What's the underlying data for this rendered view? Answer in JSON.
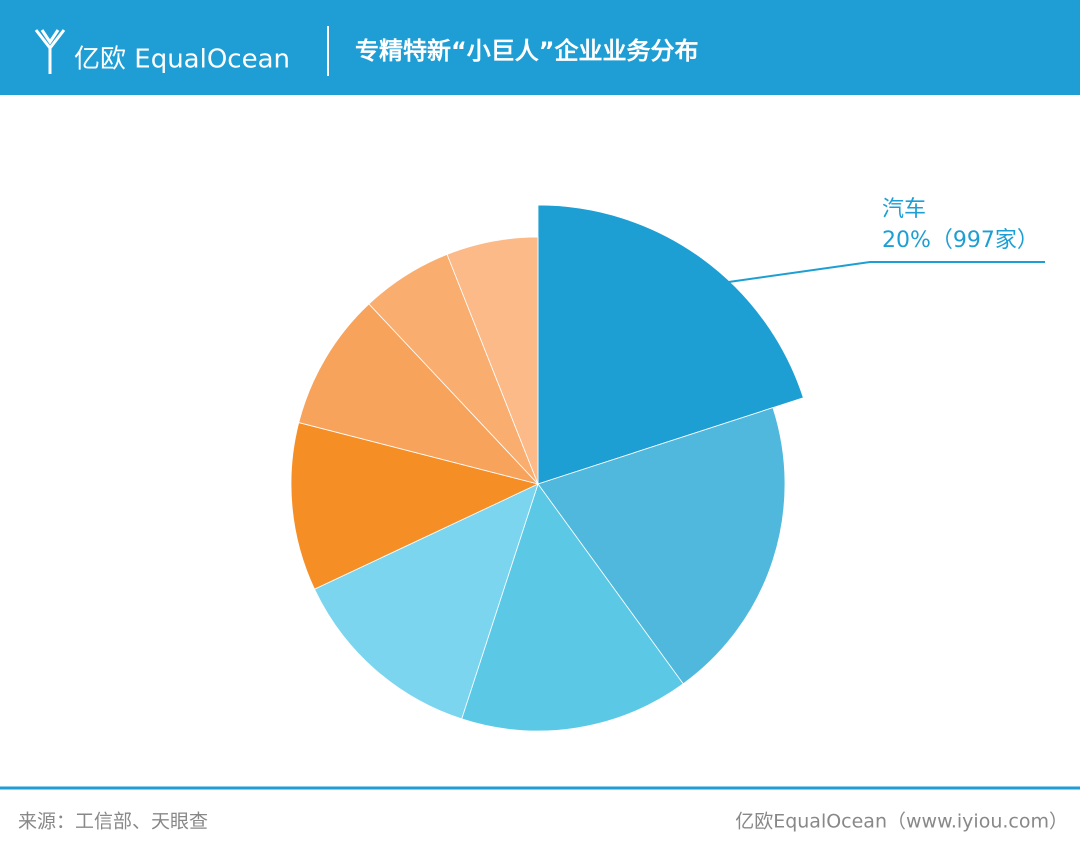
{
  "brand": {
    "logo": "亿欧 EqualOcean"
  },
  "chart_data": {
    "type": "pie",
    "title": "专精特新“小巨人”企业业务分布",
    "categories": [
      "汽车",
      null,
      null,
      null,
      null,
      null,
      null,
      null
    ],
    "values": [
      20,
      20,
      15,
      13,
      11,
      9,
      6,
      6
    ],
    "value_labels": [
      "20%（997家）",
      null,
      null,
      null,
      null,
      null,
      null,
      null
    ],
    "colors": [
      "#1e9fd4",
      "#4fb8dc",
      "#5bc9e6",
      "#7bd5ef",
      "#f68e26",
      "#f8a35c",
      "#f9ae70",
      "#fbba88"
    ]
  },
  "footer": {
    "source": "来源：工信部、天眼查",
    "credit": "亿欧EqualOcean（www.iyiou.com）"
  }
}
